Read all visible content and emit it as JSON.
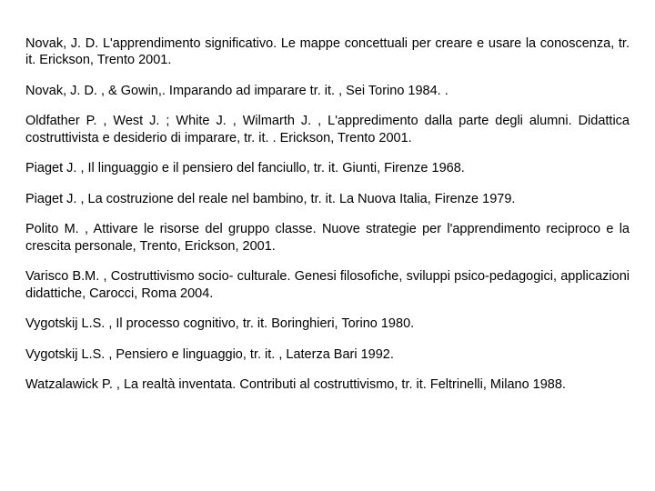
{
  "document": {
    "background_color": "#ffffff",
    "text_color": "#000000",
    "font_size_pt": 11,
    "text_align": "justify",
    "references": [
      "Novak, J. D. L'apprendimento significativo. Le mappe concettuali per creare e usare la conoscenza, tr. it. Erickson, Trento 2001.",
      "Novak, J. D. , & Gowin,. Imparando ad imparare tr. it. , Sei Torino 1984. .",
      "Oldfather P. , West J. ; White J. , Wilmarth J. , L'appredimento dalla parte degli alumni. Didattica costruttivista  e desiderio di imparare, tr. it. . Erickson, Trento 2001.",
      "Piaget  J. , Il linguaggio e il pensiero del fanciullo, tr. it. Giunti, Firenze 1968.",
      "Piaget  J. , La costruzione del reale nel bambino, tr. it. La Nuova Italia, Firenze 1979.",
      "Polito M. , Attivare le risorse del gruppo classe. Nuove strategie per l'apprendimento reciproco e la crescita personale, Trento, Erickson, 2001.",
      "Varisco B.M. , Costruttivismo socio- culturale. Genesi filosofiche, sviluppi psico-pedagogici, applicazioni didattiche, Carocci, Roma 2004.",
      "Vygotskij L.S. , Il processo cognitivo, tr. it. Boringhieri, Torino 1980.",
      "Vygotskij L.S. , Pensiero e linguaggio, tr. it. , Laterza Bari 1992.",
      "Watzalawick P. , La realtà inventata. Contributi al costruttivismo, tr. it. Feltrinelli, Milano 1988."
    ]
  }
}
